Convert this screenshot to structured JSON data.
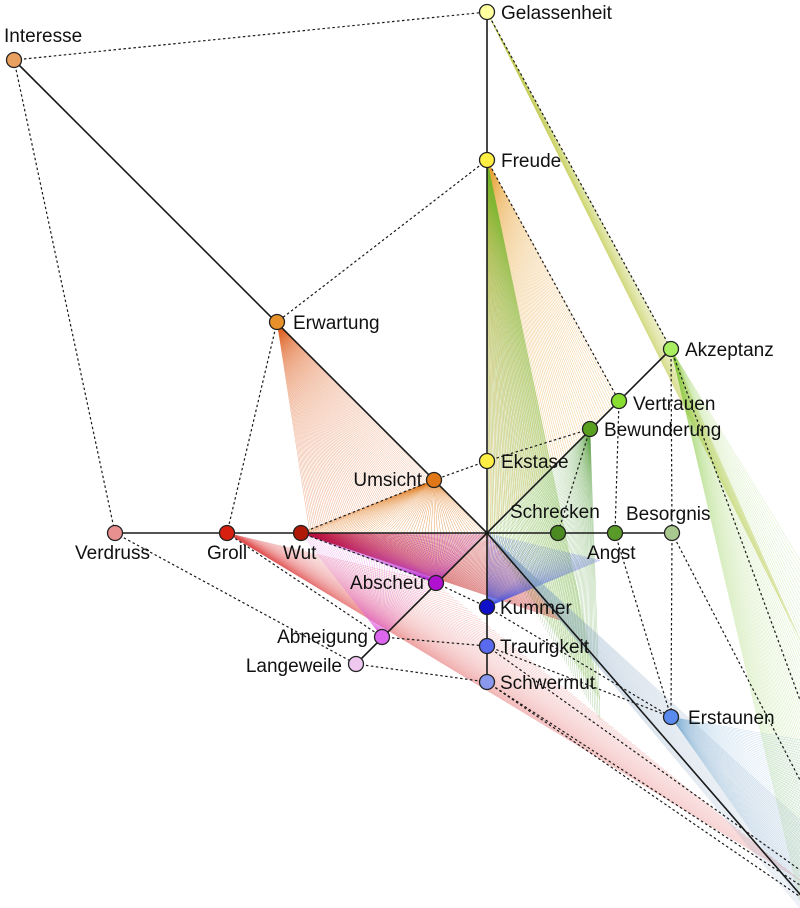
{
  "diagram": {
    "emotions": [
      {
        "id": "interesse",
        "label": "Interesse",
        "color": "#e8a060"
      },
      {
        "id": "erwartung",
        "label": "Erwartung",
        "color": "#e8902a"
      },
      {
        "id": "umsicht",
        "label": "Umsicht",
        "color": "#e07818"
      },
      {
        "id": "gelassenheit",
        "label": "Gelassenheit",
        "color": "#ffffa0"
      },
      {
        "id": "freude",
        "label": "Freude",
        "color": "#ffee44"
      },
      {
        "id": "ekstase",
        "label": "Ekstase",
        "color": "#ffee44"
      },
      {
        "id": "akzeptanz",
        "label": "Akzeptanz",
        "color": "#a8ee60"
      },
      {
        "id": "vertrauen",
        "label": "Vertrauen",
        "color": "#88dd30"
      },
      {
        "id": "bewunderung",
        "label": "Bewunderung",
        "color": "#5aa020"
      },
      {
        "id": "schrecken",
        "label": "Schrecken",
        "color": "#4a8a20"
      },
      {
        "id": "angst",
        "label": "Angst",
        "color": "#5a9a28"
      },
      {
        "id": "besorgnis",
        "label": "Besorgnis",
        "color": "#a8c890"
      },
      {
        "id": "verdruss",
        "label": "Verdruss",
        "color": "#e89090"
      },
      {
        "id": "groll",
        "label": "Groll",
        "color": "#d82010"
      },
      {
        "id": "wut",
        "label": "Wut",
        "color": "#b01808"
      },
      {
        "id": "abscheu",
        "label": "Abscheu",
        "color": "#b010d0"
      },
      {
        "id": "abneigung",
        "label": "Abneigung",
        "color": "#dd66ee"
      },
      {
        "id": "langeweile",
        "label": "Langeweile",
        "color": "#eec8ee"
      },
      {
        "id": "kummer",
        "label": "Kummer",
        "color": "#1010c8"
      },
      {
        "id": "traurigkeit",
        "label": "Traurigkeit",
        "color": "#5a6aee"
      },
      {
        "id": "schwermut",
        "label": "Schwermut",
        "color": "#8a98ee"
      },
      {
        "id": "erstaunen",
        "label": "Erstaunen",
        "color": "#5a8aee"
      }
    ],
    "solid_edges": [
      [
        "gelassenheit",
        "freude"
      ],
      [
        "freude",
        "ekstase"
      ],
      [
        "interesse",
        "erwartung"
      ],
      [
        "erwartung",
        "umsicht"
      ],
      [
        "akzeptanz",
        "vertrauen"
      ],
      [
        "vertrauen",
        "bewunderung"
      ],
      [
        "schrecken",
        "angst"
      ],
      [
        "angst",
        "besorgnis"
      ],
      [
        "verdruss",
        "groll"
      ],
      [
        "groll",
        "wut"
      ],
      [
        "abscheu",
        "abneigung"
      ],
      [
        "abneigung",
        "langeweile"
      ],
      [
        "kummer",
        "traurigkeit"
      ],
      [
        "traurigkeit",
        "schwermut"
      ]
    ],
    "dotted_edges": [
      [
        "interesse",
        "gelassenheit"
      ],
      [
        "interesse",
        "verdruss"
      ],
      [
        "gelassenheit",
        "akzeptanz"
      ],
      [
        "freude",
        "erwartung"
      ],
      [
        "freude",
        "vertrauen"
      ],
      [
        "ekstase",
        "umsicht"
      ],
      [
        "ekstase",
        "bewunderung"
      ],
      [
        "erwartung",
        "groll"
      ],
      [
        "umsicht",
        "wut"
      ],
      [
        "bewunderung",
        "schrecken"
      ],
      [
        "vertrauen",
        "angst"
      ],
      [
        "akzeptanz",
        "besorgnis"
      ],
      [
        "verdruss",
        "langeweile"
      ],
      [
        "groll",
        "abneigung"
      ],
      [
        "wut",
        "abscheu"
      ],
      [
        "langeweile",
        "schwermut"
      ],
      [
        "abneigung",
        "traurigkeit"
      ],
      [
        "abscheu",
        "kummer"
      ],
      [
        "besorgnis",
        "erstaunen"
      ],
      [
        "angst",
        "erstaunen"
      ],
      [
        "schwermut",
        "ausserhalb"
      ],
      [
        "kummer",
        "erstaunen"
      ],
      [
        "traurigkeit",
        "erstaunen"
      ]
    ]
  }
}
